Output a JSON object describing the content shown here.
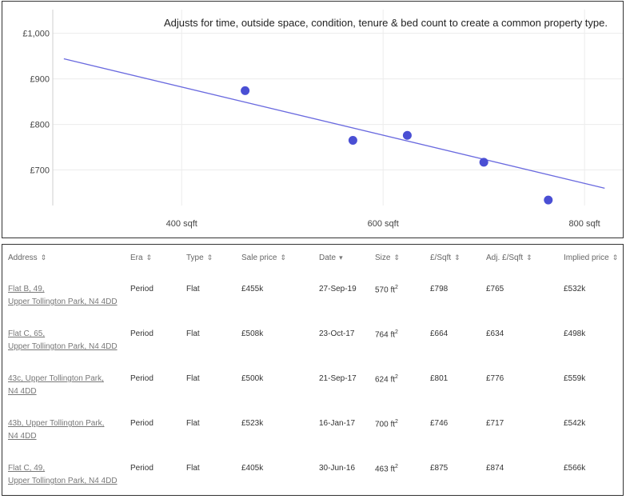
{
  "chart_data": {
    "type": "scatter",
    "title": "Adjusts for time, outside space, condition, tenure & bed count to create a common property type.",
    "xlabel": "",
    "ylabel": "",
    "x_ticks": [
      "400 sqft",
      "600 sqft",
      "800 sqft"
    ],
    "y_ticks": [
      "£1,000",
      "£900",
      "£800",
      "£700"
    ],
    "xlim": [
      272,
      838
    ],
    "ylim": [
      622,
      1052
    ],
    "grid": true,
    "accent_color": "#4a4fd4",
    "line_color": "#6a6adf",
    "points": [
      {
        "x": 463,
        "y": 874
      },
      {
        "x": 570,
        "y": 765
      },
      {
        "x": 624,
        "y": 776
      },
      {
        "x": 700,
        "y": 717
      },
      {
        "x": 764,
        "y": 634
      }
    ],
    "trend_line": [
      {
        "x": 283,
        "y": 944
      },
      {
        "x": 820,
        "y": 660
      }
    ]
  },
  "table": {
    "headers": [
      {
        "label": "Address",
        "sort": "⇕"
      },
      {
        "label": "Era",
        "sort": "⇕"
      },
      {
        "label": "Type",
        "sort": "⇕"
      },
      {
        "label": "Sale price",
        "sort": "⇕"
      },
      {
        "label": "Date",
        "sort": "▾"
      },
      {
        "label": "Size",
        "sort": "⇕"
      },
      {
        "label": "£/Sqft",
        "sort": "⇕"
      },
      {
        "label": "Adj. £/Sqft",
        "sort": "⇕"
      },
      {
        "label": "Implied price",
        "sort": "⇕"
      }
    ],
    "rows": [
      {
        "address1": "Flat B, 49,",
        "address2": "Upper Tollington Park, N4 4DD",
        "era": "Period",
        "type": "Flat",
        "sale_price": "£455k",
        "date": "27-Sep-19",
        "size": "570 ft",
        "size_unit": "2",
        "psf": "£798",
        "adj_psf": "£765",
        "implied": "£532k"
      },
      {
        "address1": "Flat C, 65,",
        "address2": "Upper Tollington Park, N4 4DD",
        "era": "Period",
        "type": "Flat",
        "sale_price": "£508k",
        "date": "23-Oct-17",
        "size": "764 ft",
        "size_unit": "2",
        "psf": "£664",
        "adj_psf": "£634",
        "implied": "£498k"
      },
      {
        "address1": "43c, Upper Tollington Park,",
        "address2": "N4 4DD",
        "era": "Period",
        "type": "Flat",
        "sale_price": "£500k",
        "date": "21-Sep-17",
        "size": "624 ft",
        "size_unit": "2",
        "psf": "£801",
        "adj_psf": "£776",
        "implied": "£559k"
      },
      {
        "address1": "43b, Upper Tollington Park,",
        "address2": "N4 4DD",
        "era": "Period",
        "type": "Flat",
        "sale_price": "£523k",
        "date": "16-Jan-17",
        "size": "700 ft",
        "size_unit": "2",
        "psf": "£746",
        "adj_psf": "£717",
        "implied": "£542k"
      },
      {
        "address1": "Flat C, 49,",
        "address2": "Upper Tollington Park, N4 4DD",
        "era": "Period",
        "type": "Flat",
        "sale_price": "£405k",
        "date": "30-Jun-16",
        "size": "463 ft",
        "size_unit": "2",
        "psf": "£875",
        "adj_psf": "£874",
        "implied": "£566k"
      }
    ]
  }
}
